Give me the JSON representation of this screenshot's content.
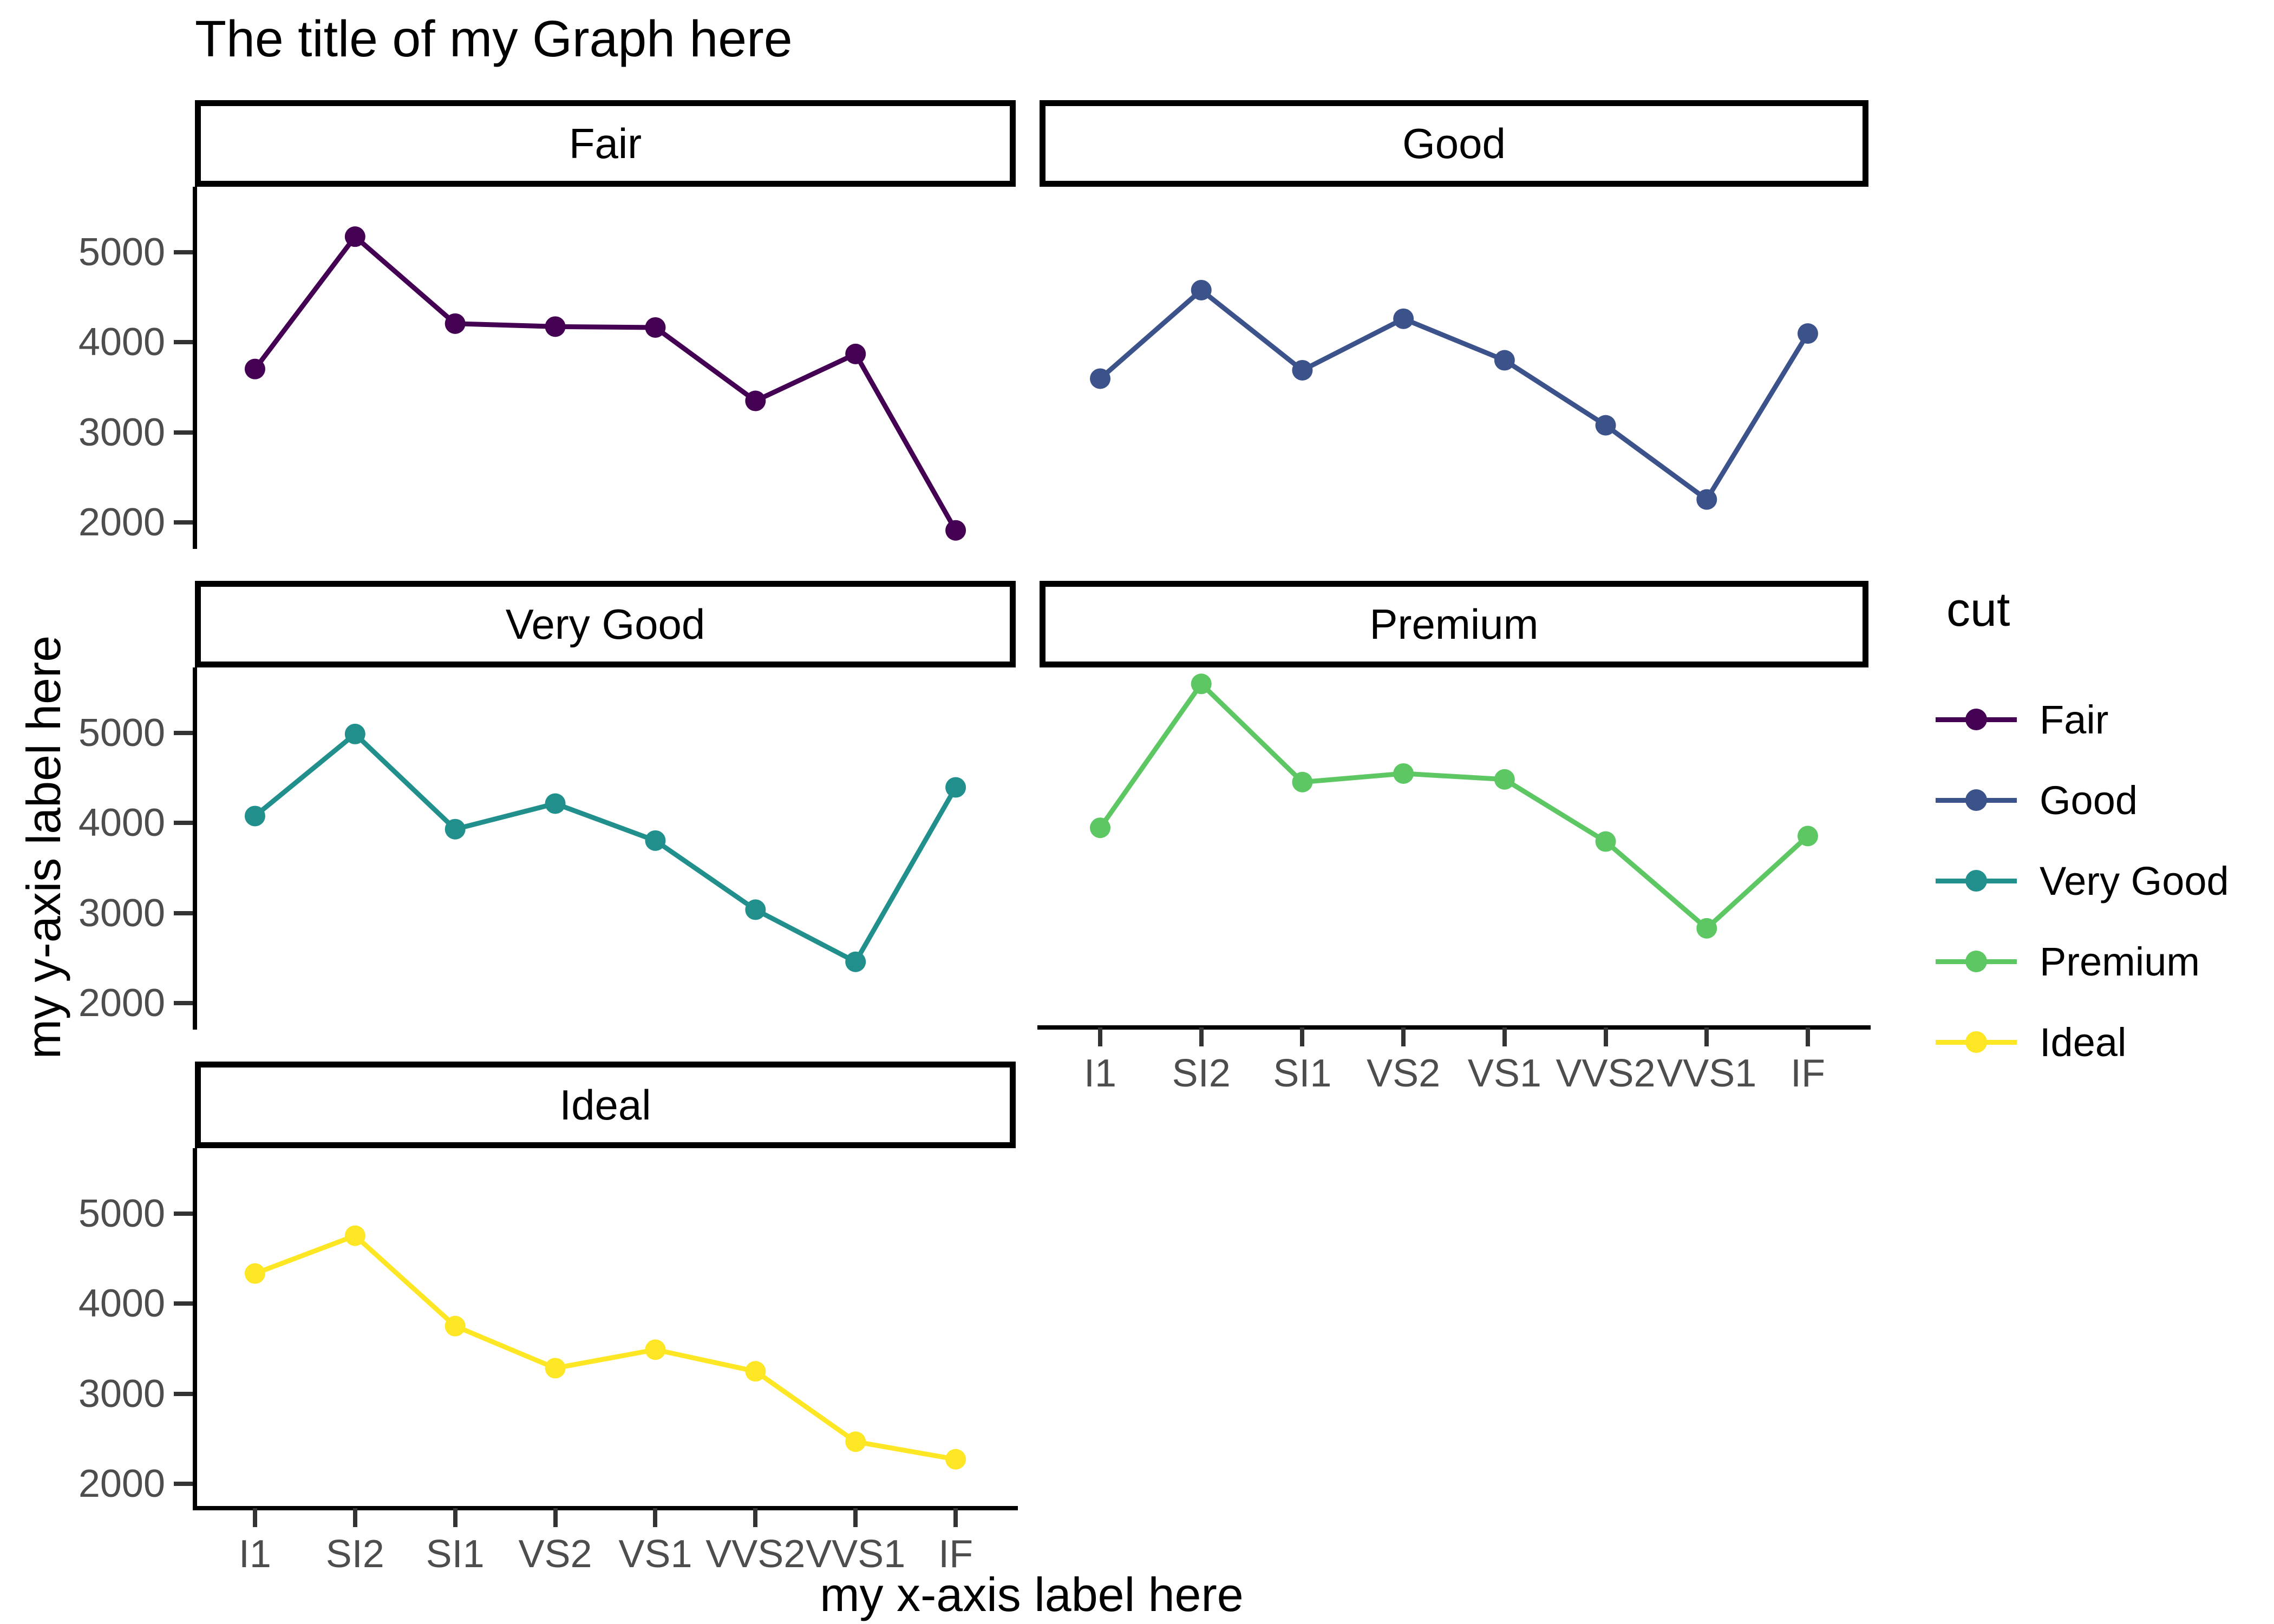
{
  "chart_data": {
    "type": "line",
    "title": "The title of my Graph here",
    "xlabel": "my x-axis label here",
    "ylabel": "my y-axis label here",
    "facet_variable": "cut",
    "legend_title": "cut",
    "legend_position": "right",
    "grid": false,
    "categories": [
      "I1",
      "SI2",
      "SI1",
      "VS2",
      "VS1",
      "VVS2",
      "VVS1",
      "IF"
    ],
    "y_ticks": [
      5000,
      4000,
      3000,
      2000
    ],
    "ylim": [
      1730,
      5728
    ],
    "series": [
      {
        "name": "Fair",
        "color": "#440154",
        "values": [
          3704,
          5174,
          4208,
          4175,
          4165,
          3350,
          3871,
          1912
        ]
      },
      {
        "name": "Good",
        "color": "#3B528B",
        "values": [
          3597,
          4580,
          3690,
          4262,
          3801,
          3079,
          2255,
          4098
        ]
      },
      {
        "name": "Very Good",
        "color": "#21908C",
        "values": [
          4078,
          4989,
          3932,
          4216,
          3805,
          3038,
          2459,
          4396
        ]
      },
      {
        "name": "Premium",
        "color": "#5DC863",
        "values": [
          3947,
          5546,
          4455,
          4550,
          4485,
          3795,
          2831,
          3856
        ]
      },
      {
        "name": "Ideal",
        "color": "#FDE725",
        "values": [
          4336,
          4756,
          3752,
          3285,
          3490,
          3250,
          2468,
          2273
        ]
      }
    ],
    "style": {
      "axis_text_color": "#4D4D4D",
      "axis_line_color": "#000000",
      "tick_color": "#333333",
      "background": "#FFFFFF"
    }
  }
}
